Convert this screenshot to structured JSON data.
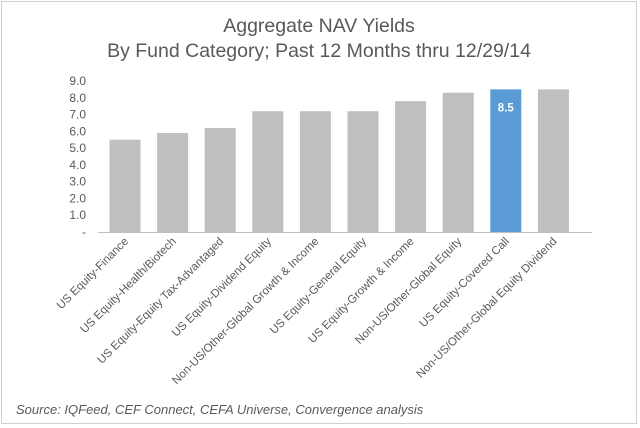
{
  "chart_data": {
    "type": "bar",
    "title": "Aggregate NAV Yields",
    "subtitle": "By Fund Category; Past 12 Months thru 12/29/14",
    "categories": [
      "US Equity-Finance",
      "US Equity-Health/Biotech",
      "US Equity-Equity Tax-Advantaged",
      "US Equity-Dividend Equity",
      "Non-US/Other-Global Growth & Income",
      "US Equity-General Equity",
      "US Equity-Growth & Income",
      "Non-US/Other-Global Equity",
      "US Equity-Covered Call",
      "Non-US/Other-Global Equity Dividend"
    ],
    "values": [
      5.5,
      5.9,
      6.2,
      7.2,
      7.2,
      7.2,
      7.8,
      8.3,
      8.5,
      8.5
    ],
    "highlight_index": 8,
    "data_labels": [
      {
        "index": 8,
        "text": "8.5"
      }
    ],
    "ylim": [
      0,
      9
    ],
    "yticks": [
      "-",
      "1.0",
      "2.0",
      "3.0",
      "4.0",
      "5.0",
      "6.0",
      "7.0",
      "8.0",
      "9.0"
    ],
    "grid": false,
    "colors": {
      "bar": "#bfbfbf",
      "highlight": "#5b9bd5",
      "axis": "#bfbfbf"
    },
    "source": "Source:  IQFeed, CEF Connect, CEFA Universe, Convergence analysis"
  }
}
